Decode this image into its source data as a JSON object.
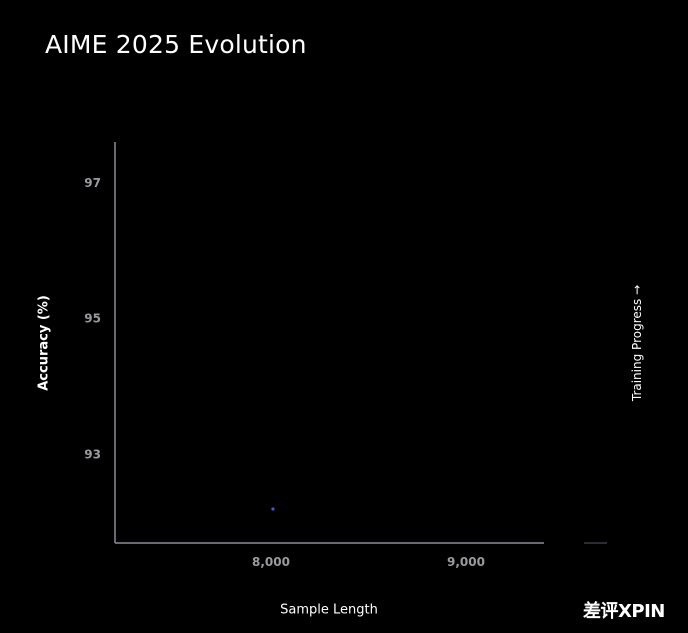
{
  "chart_data": {
    "type": "scatter",
    "title": "AIME 2025 Evolution",
    "xlabel": "Sample Length",
    "ylabel": "Accuracy (%)",
    "side_label": "Training Progress →",
    "xlim": [
      7200,
      9400
    ],
    "ylim": [
      91.7,
      97.6
    ],
    "x_ticks": [
      8000,
      9000
    ],
    "x_tick_labels": [
      "8,000",
      "9,000"
    ],
    "y_ticks": [
      93,
      95,
      97
    ],
    "y_tick_labels": [
      "93",
      "95",
      "97"
    ],
    "grid": false,
    "series": [
      {
        "x": [
          8010
        ],
        "y": [
          92.2
        ],
        "color": "#3b5bdb"
      }
    ]
  },
  "watermark": "差评XPIN",
  "colors": {
    "background": "#000000",
    "axis": "#8a8d96",
    "tick_text": "#9a9aa0",
    "point": "#3b5bdb"
  }
}
